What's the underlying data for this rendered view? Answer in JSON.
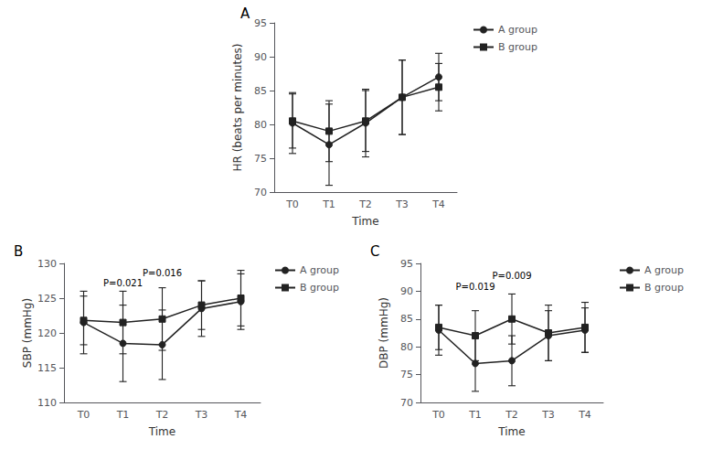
{
  "chart_data": [
    {
      "type": "line",
      "title": "A",
      "xlabel": "Time",
      "ylabel": "HR (beats per minutes)",
      "categories": [
        "T0",
        "T1",
        "T2",
        "T3",
        "T4"
      ],
      "series": [
        {
          "name": "A group",
          "color": "#222222",
          "marker": "circle",
          "line_style": "solid",
          "values": [
            80.2,
            77.0,
            80.2,
            84.0,
            87.0
          ],
          "errors": [
            4.5,
            6.0,
            5.0,
            5.5,
            3.5
          ]
        },
        {
          "name": "B group",
          "color": "#222222",
          "marker": "square",
          "line_style": "solid",
          "values": [
            80.5,
            79.0,
            80.5,
            84.0,
            85.5
          ],
          "errors": [
            4.0,
            4.5,
            4.5,
            5.5,
            3.5
          ]
        }
      ],
      "ylim": [
        70,
        95
      ],
      "yticks": [
        70,
        75,
        80,
        85,
        90,
        95
      ],
      "grid": false,
      "legend": "right"
    },
    {
      "type": "line",
      "title": "B",
      "xlabel": "Time",
      "ylabel": "SBP (mmHg)",
      "categories": [
        "T0",
        "T1",
        "T2",
        "T3",
        "T4"
      ],
      "series": [
        {
          "name": "A group",
          "color": "#222222",
          "marker": "circle",
          "line_style": "solid",
          "values": [
            121.5,
            118.5,
            118.3,
            123.5,
            124.5
          ],
          "errors": [
            4.5,
            5.5,
            5.0,
            4.0,
            4.0
          ]
        },
        {
          "name": "B group",
          "color": "#222222",
          "marker": "square",
          "line_style": "solid",
          "values": [
            121.8,
            121.5,
            122.0,
            124.0,
            125.0
          ],
          "errors": [
            3.5,
            4.5,
            4.5,
            3.5,
            4.0
          ]
        }
      ],
      "ylim": [
        110,
        130
      ],
      "yticks": [
        110,
        115,
        120,
        125,
        130
      ],
      "grid": false,
      "legend": "right",
      "annotations": [
        {
          "text": "P=0.021",
          "x": "T1",
          "y": 126.5
        },
        {
          "text": "P=0.016",
          "x": "T2",
          "y": 128.0
        }
      ]
    },
    {
      "type": "line",
      "title": "C",
      "xlabel": "Time",
      "ylabel": "DBP (mmHg)",
      "categories": [
        "T0",
        "T1",
        "T2",
        "T3",
        "T4"
      ],
      "series": [
        {
          "name": "A group",
          "color": "#222222",
          "marker": "circle",
          "line_style": "solid",
          "values": [
            83.0,
            77.0,
            77.5,
            82.0,
            83.0
          ],
          "errors": [
            4.5,
            5.0,
            4.5,
            4.5,
            4.0
          ]
        },
        {
          "name": "B group",
          "color": "#222222",
          "marker": "square",
          "line_style": "solid",
          "values": [
            83.5,
            82.0,
            85.0,
            82.5,
            83.5
          ],
          "errors": [
            4.0,
            4.5,
            4.5,
            5.0,
            4.5
          ]
        }
      ],
      "ylim": [
        70,
        95
      ],
      "yticks": [
        70,
        75,
        80,
        85,
        90,
        95
      ],
      "grid": false,
      "legend": "right",
      "annotations": [
        {
          "text": "P=0.019",
          "x": "T1",
          "y": 90.0
        },
        {
          "text": "P=0.009",
          "x": "T2",
          "y": 92.0
        }
      ]
    }
  ]
}
